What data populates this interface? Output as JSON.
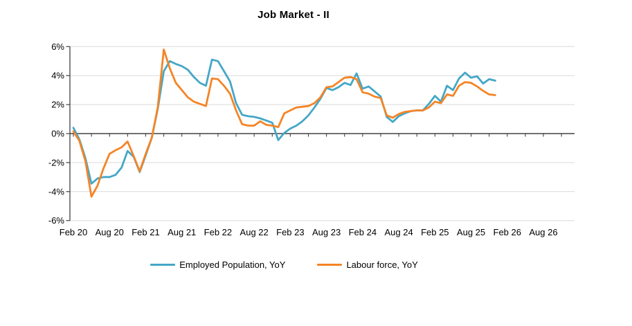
{
  "title": "Job Market - II",
  "chart_data": {
    "type": "line",
    "title": "Job Market - II",
    "frequency": "monthly",
    "x_start": "Feb 20",
    "x_end_data": "Dec 25",
    "x_tick_labels": [
      "Feb 20",
      "Aug 20",
      "Feb 21",
      "Aug 21",
      "Feb 22",
      "Aug 22",
      "Feb 23",
      "Aug 23",
      "Feb 24",
      "Aug 24",
      "Feb 25",
      "Aug 25",
      "Feb 26",
      "Aug 26"
    ],
    "y_tick_labels": [
      "6%",
      "4%",
      "2%",
      "0%",
      "-2%",
      "-4%",
      "-6%"
    ],
    "y_ticks": [
      6,
      4,
      2,
      0,
      -2,
      -4,
      -6
    ],
    "ylim": [
      -6,
      6
    ],
    "y_unit": "%",
    "grid": true,
    "legend_position": "bottom",
    "axis_color": "#404040",
    "gridline_color": "#d9d9d9",
    "months": [
      "Feb 20",
      "Mar 20",
      "Apr 20",
      "May 20",
      "Jun 20",
      "Jul 20",
      "Aug 20",
      "Sep 20",
      "Oct 20",
      "Nov 20",
      "Dec 20",
      "Jan 21",
      "Feb 21",
      "Mar 21",
      "Apr 21",
      "May 21",
      "Jun 21",
      "Jul 21",
      "Aug 21",
      "Sep 21",
      "Oct 21",
      "Nov 21",
      "Dec 21",
      "Jan 22",
      "Feb 22",
      "Mar 22",
      "Apr 22",
      "May 22",
      "Jun 22",
      "Jul 22",
      "Aug 22",
      "Sep 22",
      "Oct 22",
      "Nov 22",
      "Dec 22",
      "Jan 23",
      "Feb 23",
      "Mar 23",
      "Apr 23",
      "May 23",
      "Jun 23",
      "Jul 23",
      "Aug 23",
      "Sep 23",
      "Oct 23",
      "Nov 23",
      "Dec 23",
      "Jan 24",
      "Feb 24",
      "Mar 24",
      "Apr 24",
      "May 24",
      "Jun 24",
      "Jul 24",
      "Aug 24",
      "Sep 24",
      "Oct 24",
      "Nov 24",
      "Dec 24",
      "Jan 25",
      "Feb 25",
      "Mar 25",
      "Apr 25",
      "May 25",
      "Jun 25",
      "Jul 25",
      "Aug 25",
      "Sep 25",
      "Oct 25",
      "Nov 25",
      "Dec 25"
    ],
    "series": [
      {
        "name": "Employed Population, YoY",
        "color": "#44a7c7",
        "values": [
          0.4,
          -0.4,
          -1.7,
          -3.45,
          -3.1,
          -3.0,
          -3.0,
          -2.85,
          -2.35,
          -1.2,
          -1.6,
          -2.65,
          -1.5,
          -0.3,
          1.7,
          4.3,
          5.0,
          4.8,
          4.65,
          4.4,
          3.9,
          3.5,
          3.3,
          5.1,
          5.0,
          4.3,
          3.6,
          2.1,
          1.3,
          1.2,
          1.15,
          1.05,
          0.9,
          0.75,
          -0.45,
          0.05,
          0.35,
          0.55,
          0.85,
          1.25,
          1.8,
          2.4,
          3.15,
          3.0,
          3.2,
          3.5,
          3.35,
          4.15,
          3.1,
          3.25,
          2.9,
          2.55,
          1.15,
          0.8,
          1.2,
          1.4,
          1.55,
          1.6,
          1.6,
          2.05,
          2.6,
          2.2,
          3.3,
          3.0,
          3.8,
          4.2,
          3.85,
          3.95,
          3.45,
          3.75,
          3.65
        ]
      },
      {
        "name": "Labour force, YoY",
        "color": "#f58426",
        "values": [
          0.15,
          -0.5,
          -1.9,
          -4.35,
          -3.6,
          -2.4,
          -1.4,
          -1.15,
          -0.95,
          -0.55,
          -1.55,
          -2.6,
          -1.4,
          -0.3,
          1.8,
          5.8,
          4.5,
          3.5,
          3.0,
          2.5,
          2.2,
          2.05,
          1.9,
          3.8,
          3.75,
          3.3,
          2.75,
          1.6,
          0.65,
          0.55,
          0.55,
          0.85,
          0.6,
          0.55,
          0.45,
          1.4,
          1.6,
          1.8,
          1.85,
          1.9,
          2.1,
          2.5,
          3.2,
          3.25,
          3.55,
          3.85,
          3.9,
          3.75,
          2.85,
          2.75,
          2.55,
          2.45,
          1.25,
          1.1,
          1.35,
          1.5,
          1.55,
          1.6,
          1.6,
          1.8,
          2.2,
          2.1,
          2.7,
          2.6,
          3.3,
          3.55,
          3.5,
          3.25,
          2.95,
          2.7,
          2.65
        ]
      }
    ]
  }
}
